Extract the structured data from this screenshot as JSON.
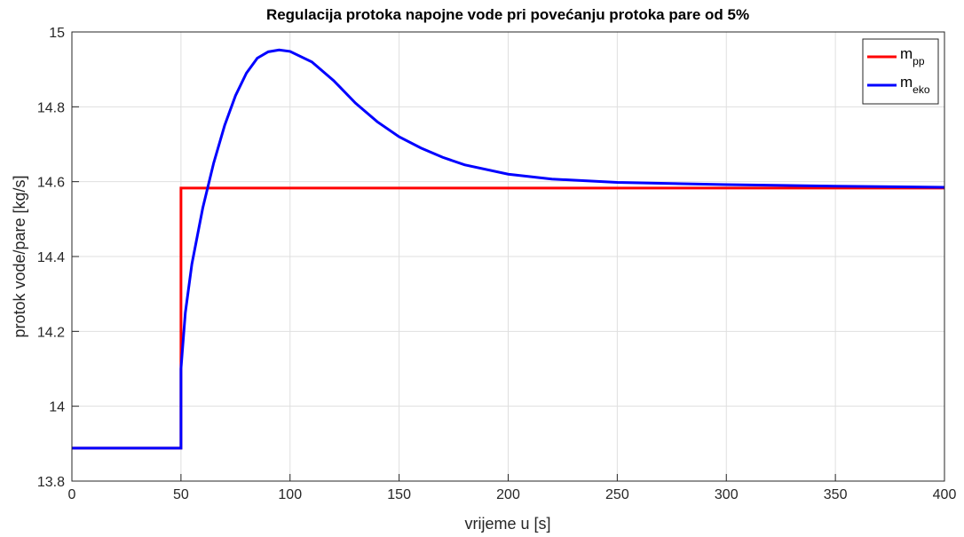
{
  "chart_data": {
    "type": "line",
    "title": "Regulacija protoka napojne vode pri povećanju protoka pare od 5%",
    "xlabel": "vrijeme u [s]",
    "ylabel": "protok vode/pare [kg/s]",
    "xlim": [
      0,
      400
    ],
    "ylim": [
      13.8,
      15
    ],
    "xticks": [
      0,
      50,
      100,
      150,
      200,
      250,
      300,
      350,
      400
    ],
    "yticks": [
      13.8,
      14,
      14.2,
      14.4,
      14.6,
      14.8,
      15
    ],
    "grid": true,
    "legend": "upper right",
    "series": [
      {
        "name": "m",
        "name_subscript": "pp",
        "color": "#ff0000",
        "x": [
          0,
          50,
          50,
          400
        ],
        "values": [
          13.888,
          13.888,
          14.583,
          14.583
        ]
      },
      {
        "name": "m",
        "name_subscript": "eko",
        "color": "#0000ff",
        "x": [
          0,
          50,
          50,
          52,
          55,
          60,
          65,
          70,
          75,
          80,
          85,
          90,
          95,
          100,
          110,
          120,
          130,
          140,
          150,
          160,
          170,
          180,
          200,
          220,
          250,
          300,
          350,
          400
        ],
        "values": [
          13.888,
          13.888,
          14.1,
          14.25,
          14.38,
          14.53,
          14.65,
          14.75,
          14.83,
          14.89,
          14.93,
          14.947,
          14.952,
          14.948,
          14.92,
          14.87,
          14.81,
          14.76,
          14.72,
          14.69,
          14.665,
          14.645,
          14.62,
          14.607,
          14.598,
          14.592,
          14.588,
          14.585
        ]
      }
    ]
  }
}
